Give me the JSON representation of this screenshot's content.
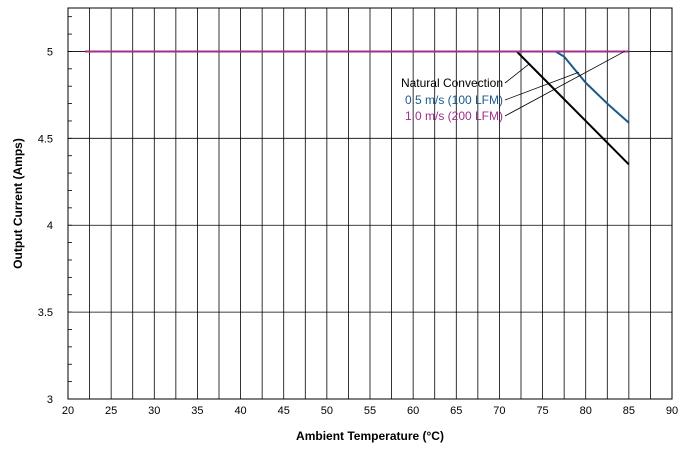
{
  "chart_data": {
    "type": "line",
    "title": "",
    "xlabel": "Ambient Temperature (°C)",
    "ylabel": "Output Current (Amps)",
    "xlim": [
      20,
      90
    ],
    "ylim": [
      3,
      5.25
    ],
    "x_ticks": [
      20,
      25,
      30,
      35,
      40,
      45,
      50,
      55,
      60,
      65,
      70,
      75,
      80,
      85,
      90
    ],
    "x_tick_labels": [
      "20",
      "25",
      "30",
      "35",
      "40",
      "45",
      "50",
      "55",
      "60",
      "65",
      "70",
      "75",
      "80",
      "85",
      "90"
    ],
    "y_ticks": [
      3,
      3.5,
      4,
      4.5,
      5
    ],
    "y_tick_labels": [
      "3",
      "3.5",
      "4",
      "4.5",
      "5"
    ],
    "grid": true,
    "series": [
      {
        "name": "Natural Convection",
        "color": "#000000",
        "x": [
          22,
          72,
          75,
          80,
          85
        ],
        "y": [
          5,
          5,
          4.85,
          4.6,
          4.35
        ]
      },
      {
        "name": "0.5 m/s (100 LFM)",
        "color": "#1a5a8a",
        "x": [
          22,
          76.5,
          77.5,
          80,
          82.5,
          85
        ],
        "y": [
          5,
          5,
          4.97,
          4.82,
          4.7,
          4.59
        ]
      },
      {
        "name": "1.0 m/s (200 LFM)",
        "color": "#a0308a",
        "x": [
          22,
          85
        ],
        "y": [
          5,
          5
        ]
      }
    ],
    "legend_placement": "callout-upper-right"
  }
}
